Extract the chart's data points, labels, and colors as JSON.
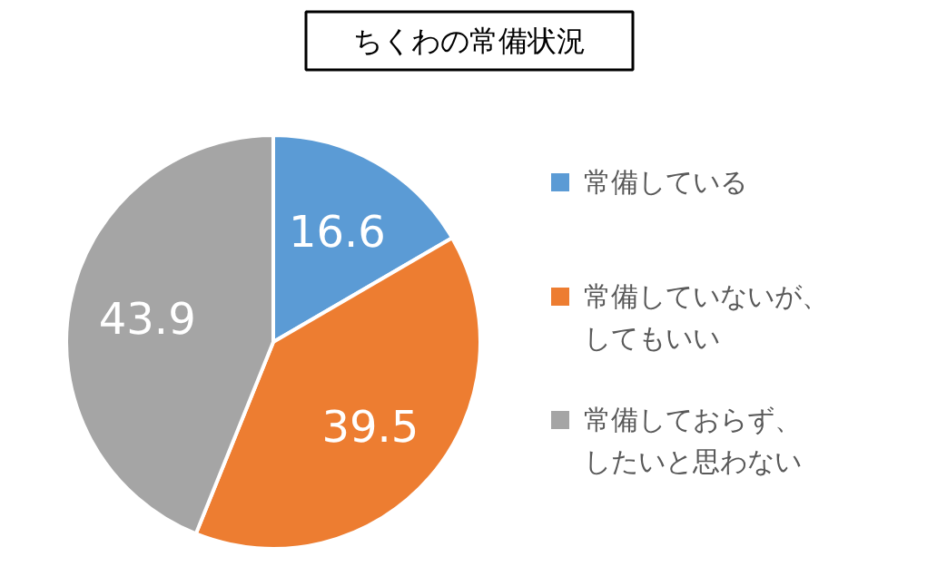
{
  "chart_data": {
    "type": "pie",
    "title": "ちくわの常備状況",
    "categories": [
      "常備している",
      "常備していないが、してもいい",
      "常備しておらず、したいと思わない"
    ],
    "values": [
      16.6,
      39.5,
      43.9
    ],
    "colors": [
      "#5b9bd5",
      "#ed7d31",
      "#a5a5a5"
    ],
    "data_labels": true,
    "legend": "right"
  }
}
